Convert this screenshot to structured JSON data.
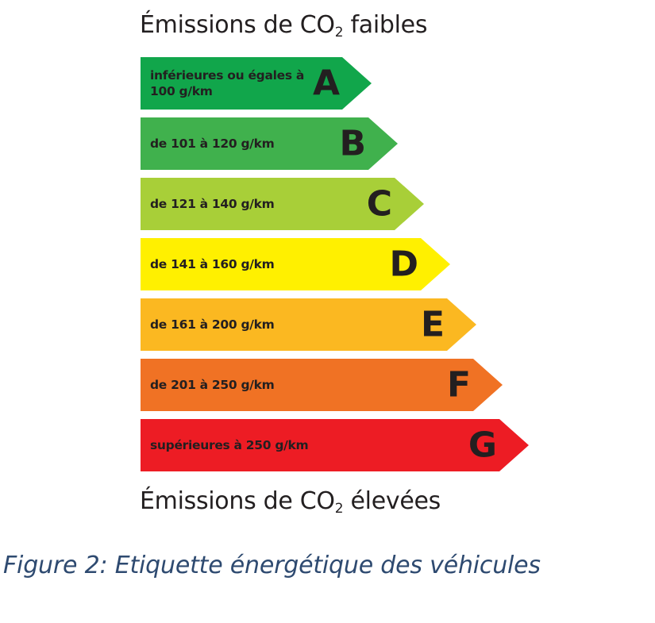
{
  "heading_low": {
    "prefix": "Émissions de CO",
    "sub": "2",
    "suffix": " faibles"
  },
  "heading_high": {
    "prefix": "Émissions de CO",
    "sub": "2",
    "suffix": " élevées"
  },
  "classes": [
    {
      "letter": "A",
      "range": "inférieures ou égales à 100 g/km",
      "color": "#11a64b"
    },
    {
      "letter": "B",
      "range": "de 101 à 120 g/km",
      "color": "#40b14d"
    },
    {
      "letter": "C",
      "range": "de 121 à 140 g/km",
      "color": "#a8cf38"
    },
    {
      "letter": "D",
      "range": "de 141 à 160 g/km",
      "color": "#fff000"
    },
    {
      "letter": "E",
      "range": "de 161 à 200 g/km",
      "color": "#fbb821"
    },
    {
      "letter": "F",
      "range": "de 201 à 250 g/km",
      "color": "#f07224"
    },
    {
      "letter": "G",
      "range": "supérieures à 250 g/km",
      "color": "#ed1c24"
    }
  ],
  "caption": "Figure 2: Etiquette énergétique des véhicules"
}
